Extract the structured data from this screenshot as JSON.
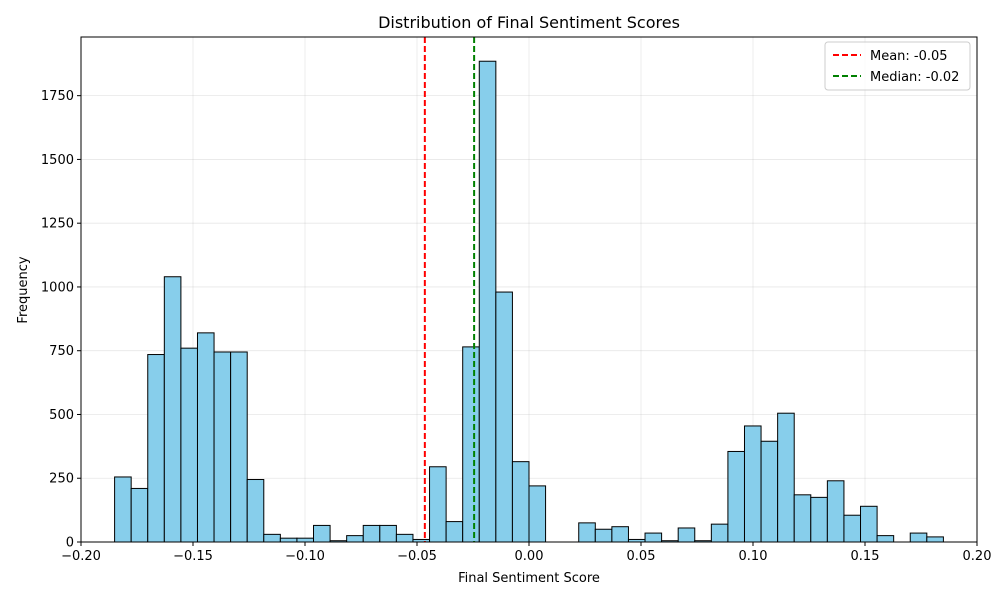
{
  "chart_data": {
    "type": "bar",
    "subtype": "histogram",
    "title": "Distribution of Final Sentiment Scores",
    "xlabel": "Final Sentiment Score",
    "ylabel": "Frequency",
    "xlim": [
      -0.2,
      0.2
    ],
    "ylim": [
      0,
      1980
    ],
    "xticks": [
      -0.2,
      -0.15,
      -0.1,
      -0.05,
      0.0,
      0.05,
      0.1,
      0.15,
      0.2
    ],
    "xtick_labels": [
      "−0.20",
      "−0.15",
      "−0.10",
      "−0.05",
      "0.00",
      "0.05",
      "0.10",
      "0.15",
      "0.20"
    ],
    "yticks": [
      0,
      250,
      500,
      750,
      1000,
      1250,
      1500,
      1750
    ],
    "ytick_labels": [
      "0",
      "250",
      "500",
      "750",
      "1000",
      "1250",
      "1500",
      "1750"
    ],
    "grid": true,
    "bar_color": "#87ceeb",
    "edge_color": "#000000",
    "bins": {
      "start": -0.185,
      "width": 0.0074,
      "counts": [
        255,
        210,
        735,
        1040,
        760,
        820,
        745,
        745,
        245,
        30,
        15,
        15,
        65,
        5,
        25,
        65,
        65,
        30,
        10,
        295,
        80,
        765,
        1885,
        980,
        315,
        220,
        0,
        0,
        75,
        50,
        60,
        10,
        35,
        5,
        55,
        5,
        70,
        355,
        455,
        395,
        505,
        185,
        175,
        240,
        105,
        140,
        25,
        0,
        35,
        20
      ]
    },
    "vlines": [
      {
        "name": "Mean: -0.05",
        "x": -0.0465,
        "color": "#ff0000",
        "style": "dashed"
      },
      {
        "name": "Median: -0.02",
        "x": -0.0245,
        "color": "#008000",
        "style": "dashed"
      }
    ],
    "legend": {
      "position": "top-right",
      "entries": [
        "Mean: -0.05",
        "Median: -0.02"
      ]
    }
  }
}
